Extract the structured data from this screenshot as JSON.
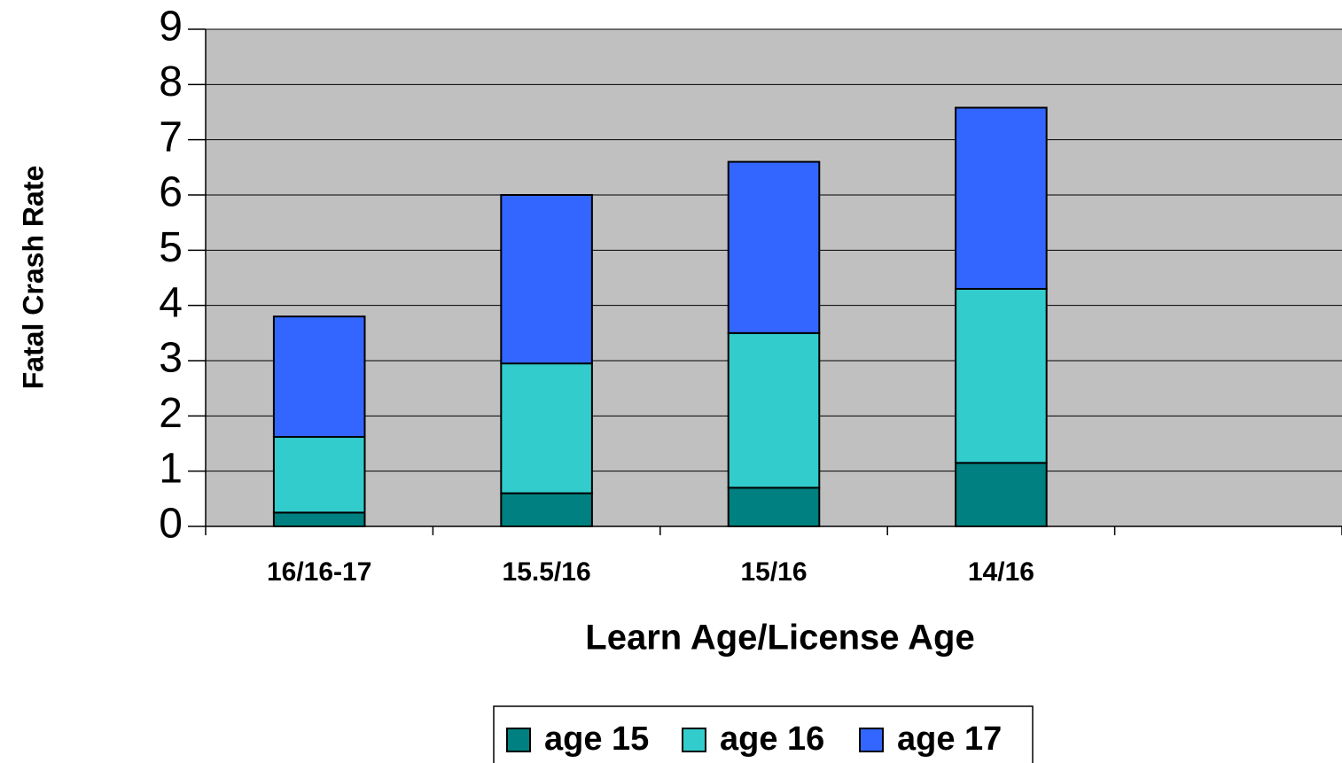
{
  "chart_data": {
    "type": "stacked_bar",
    "y_label": "Fatal Crash Rate",
    "x_label": "Learn Age/License Age",
    "categories": [
      "16/16-17",
      "15.5/16",
      "15/16",
      "14/16",
      null
    ],
    "series": [
      {
        "name": "age 15",
        "color": "#008080",
        "values": [
          0.25,
          0.6,
          0.7,
          1.15,
          null
        ]
      },
      {
        "name": "age 16",
        "color": "#33cccc",
        "values": [
          1.37,
          2.35,
          2.8,
          3.15,
          null
        ]
      },
      {
        "name": "age 17",
        "color": "#3366ff",
        "values": [
          2.18,
          3.05,
          3.1,
          3.28,
          null
        ]
      }
    ],
    "ylim": [
      0,
      9
    ],
    "yticks": [
      0,
      1,
      2,
      3,
      4,
      5,
      6,
      7,
      8,
      9
    ],
    "grid": true,
    "legend": "bottom"
  }
}
